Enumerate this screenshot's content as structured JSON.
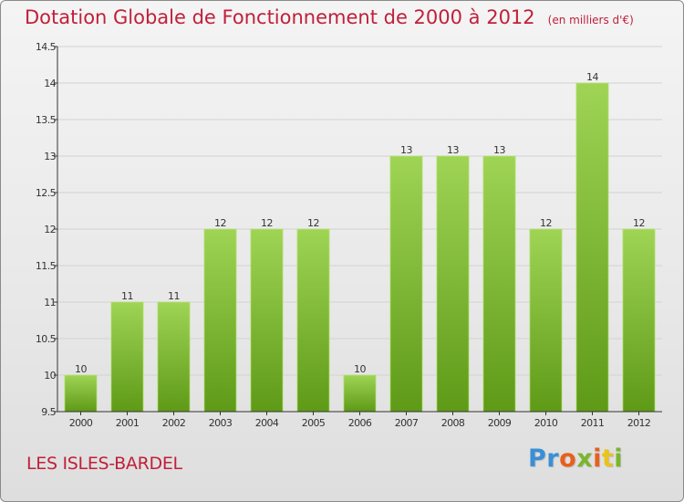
{
  "title": "Dotation Globale de Fonctionnement de 2000 à 2012",
  "unit_note": "(en milliers d'€)",
  "commune": "LES ISLES-BARDEL",
  "logo": {
    "text": "Proxiti",
    "letter_colors": [
      "#3a8fd6",
      "#3a8fd6",
      "#e8601c",
      "#7ab62c",
      "#e8601c",
      "#e8c31c",
      "#7ab62c"
    ]
  },
  "colors": {
    "title": "#c0203a",
    "bar_top": "#9fd455",
    "bar_bottom": "#5e9a17",
    "grid": "#d2d2d2",
    "axis": "#333333"
  },
  "chart_data": {
    "type": "bar",
    "title": "Dotation Globale de Fonctionnement de 2000 à 2012",
    "subtitle": "(en milliers d'€)",
    "xlabel": "",
    "ylabel": "",
    "categories": [
      "2000",
      "2001",
      "2002",
      "2003",
      "2004",
      "2005",
      "2006",
      "2007",
      "2008",
      "2009",
      "2010",
      "2011",
      "2012"
    ],
    "values": [
      10,
      11,
      11,
      12,
      12,
      12,
      10,
      13,
      13,
      13,
      12,
      14,
      12
    ],
    "data_labels": [
      "10",
      "11",
      "11",
      "12",
      "12",
      "12",
      "10",
      "13",
      "13",
      "13",
      "12",
      "14",
      "12"
    ],
    "ylim": [
      9.5,
      14.5
    ],
    "yticks": [
      9.5,
      10,
      10.5,
      11,
      11.5,
      12,
      12.5,
      13,
      13.5,
      14,
      14.5
    ],
    "ytick_labels": [
      "9.5",
      "10",
      "10.5",
      "11",
      "11.5",
      "12",
      "12.5",
      "13",
      "13.5",
      "14",
      "14.5"
    ],
    "grid": true,
    "legend": "none"
  }
}
